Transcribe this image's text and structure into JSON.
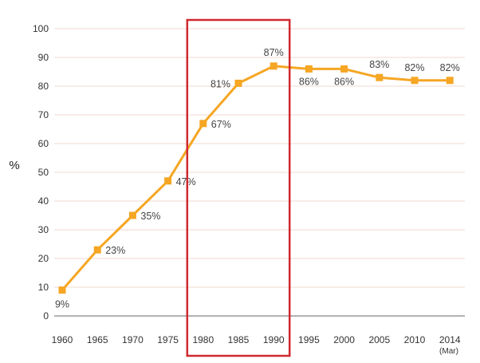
{
  "chart_data": {
    "type": "line",
    "title": "",
    "xlabel": "",
    "ylabel": "%",
    "categories": [
      "1960",
      "1965",
      "1970",
      "1975",
      "1980",
      "1985",
      "1990",
      "1995",
      "2000",
      "2005",
      "2010",
      "2014"
    ],
    "x_sublabel": "(Mar)",
    "series": [
      {
        "values": [
          9,
          23,
          35,
          47,
          67,
          81,
          87,
          86,
          86,
          83,
          82,
          82
        ],
        "point_labels": [
          "9%",
          "23%",
          "35%",
          "47%",
          "67%",
          "81%",
          "87%",
          "86%",
          "86%",
          "83%",
          "82%",
          "82%"
        ]
      }
    ],
    "ylim": [
      0,
      100
    ],
    "yticks": [
      0,
      10,
      20,
      30,
      40,
      50,
      60,
      70,
      80,
      90,
      100
    ],
    "grid": true,
    "legend": "none",
    "highlight_range": [
      "1980",
      "1990"
    ],
    "colors": {
      "line": "#F5A623",
      "marker": "#F5A623",
      "grid": "#F2D9D0",
      "axis": "#666666",
      "highlight": "#D0282F"
    }
  }
}
